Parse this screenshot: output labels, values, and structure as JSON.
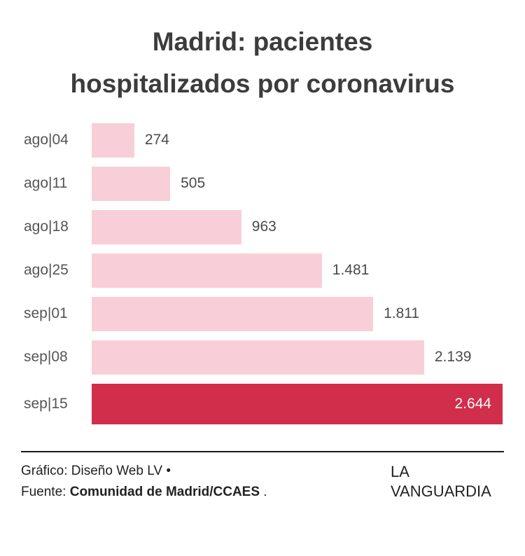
{
  "title_lines": [
    "Madrid: pacientes",
    "hospitalizados por coronavirus"
  ],
  "chart_data": {
    "type": "bar",
    "orientation": "horizontal",
    "title": "Madrid: pacientes hospitalizados por coronavirus",
    "categories": [
      "ago|04",
      "ago|11",
      "ago|18",
      "ago|25",
      "sep|01",
      "sep|08",
      "sep|15"
    ],
    "values": [
      274,
      505,
      963,
      1481,
      1811,
      2139,
      2644
    ],
    "value_labels": [
      "274",
      "505",
      "963",
      "1.481",
      "1.811",
      "2.139",
      "2.644"
    ],
    "xlim": [
      0,
      2644
    ],
    "highlight_index": 6,
    "bar_color": "#f8cfd8",
    "highlight_color": "#d12e4b",
    "value_label_color": "#4a4a4a",
    "highlight_value_label_color": "#ffffff",
    "grid": false,
    "legend": false
  },
  "footer": {
    "line1": "Gráfico: Diseño Web LV •",
    "line2_prefix": "Fuente: ",
    "line2_bold": "Comunidad de Madrid/CCAES",
    "line2_suffix": " .",
    "brand_line1": "LA",
    "brand_line2": "VANGUARDIA"
  }
}
